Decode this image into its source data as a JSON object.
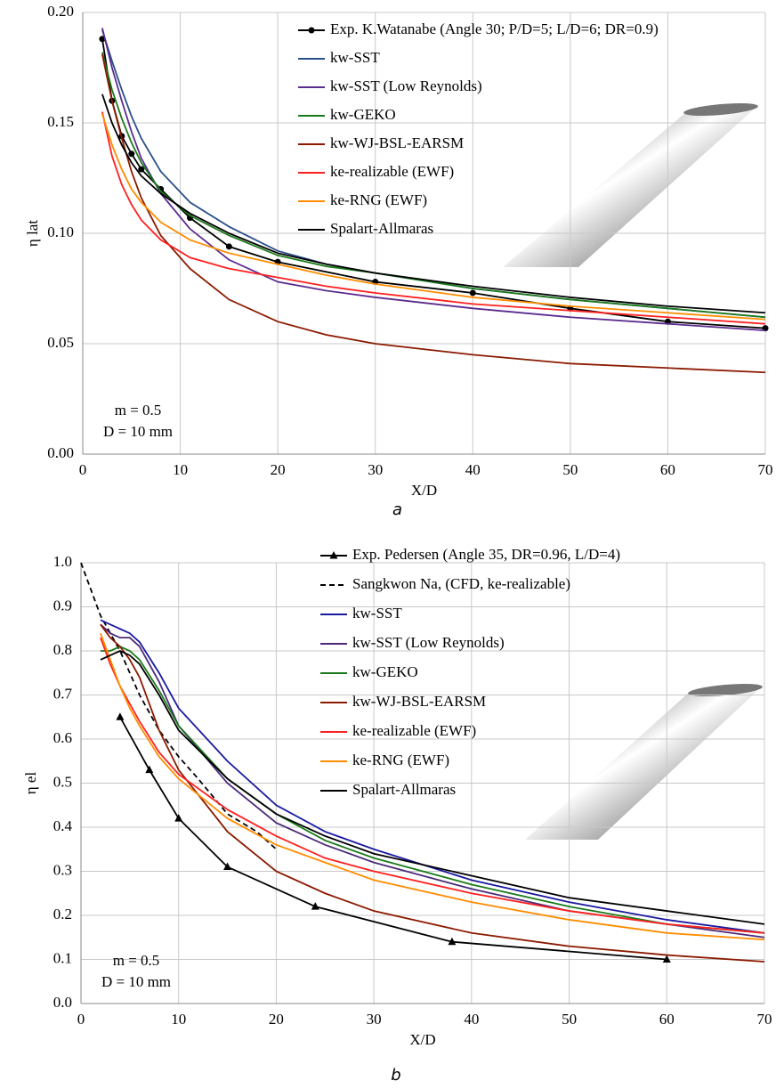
{
  "chart_data": [
    {
      "type": "line",
      "panel_label": "a",
      "xlabel": "X/D",
      "ylabel": "η lat",
      "annotations": [
        "m = 0.5",
        "D = 10 mm"
      ],
      "xlim": [
        0,
        70
      ],
      "xticks": [
        0,
        10,
        20,
        30,
        40,
        50,
        60,
        70
      ],
      "ylim": [
        0,
        0.2
      ],
      "yticks": [
        {
          "value": 0,
          "label": "0.00"
        },
        {
          "value": 0.05,
          "label": "0.05"
        },
        {
          "value": 0.1,
          "label": "0.10"
        },
        {
          "value": 0.15,
          "label": "0.15"
        },
        {
          "value": 0.2,
          "label": "0.20"
        }
      ],
      "grid": true,
      "legend": "top-right",
      "series": [
        {
          "name": "Exp. K.Watanabe (Angle 30; P/D=5; L/D=6; DR=0.9)",
          "color": "#000000",
          "marker": "circle",
          "x": [
            2,
            3,
            4,
            5,
            6,
            8,
            11,
            15,
            20,
            30,
            40,
            50,
            60,
            70
          ],
          "values": [
            0.188,
            0.16,
            0.144,
            0.136,
            0.129,
            0.12,
            0.107,
            0.094,
            0.087,
            0.078,
            0.073,
            0.066,
            0.06,
            0.057
          ]
        },
        {
          "name": "kw-SST",
          "color": "#2a4f8a",
          "x": [
            2,
            3,
            4,
            5,
            6,
            8,
            11,
            15,
            20,
            25,
            30,
            40,
            50,
            60,
            70
          ],
          "values": [
            0.192,
            0.178,
            0.165,
            0.153,
            0.143,
            0.128,
            0.114,
            0.103,
            0.092,
            0.086,
            0.082,
            0.075,
            0.07,
            0.066,
            0.062
          ]
        },
        {
          "name": "kw-SST (Low Reynolds)",
          "color": "#5b2c8f",
          "x": [
            2,
            3,
            4,
            5,
            6,
            8,
            11,
            15,
            20,
            25,
            30,
            40,
            50,
            60,
            70
          ],
          "values": [
            0.193,
            0.175,
            0.16,
            0.146,
            0.134,
            0.118,
            0.102,
            0.088,
            0.078,
            0.074,
            0.071,
            0.066,
            0.062,
            0.059,
            0.056
          ]
        },
        {
          "name": "kw-GEKO",
          "color": "#1a7a1a",
          "x": [
            2,
            3,
            4,
            5,
            6,
            8,
            11,
            15,
            20,
            25,
            30,
            40,
            50,
            60,
            70
          ],
          "values": [
            0.182,
            0.165,
            0.152,
            0.141,
            0.132,
            0.119,
            0.108,
            0.099,
            0.09,
            0.085,
            0.082,
            0.075,
            0.07,
            0.066,
            0.062
          ]
        },
        {
          "name": "kw-WJ-BSL-EARSM",
          "color": "#8b1a00",
          "x": [
            2,
            3,
            4,
            5,
            6,
            8,
            11,
            15,
            20,
            25,
            30,
            40,
            50,
            60,
            70
          ],
          "values": [
            0.181,
            0.16,
            0.143,
            0.128,
            0.116,
            0.099,
            0.084,
            0.07,
            0.06,
            0.054,
            0.05,
            0.045,
            0.041,
            0.039,
            0.037
          ]
        },
        {
          "name": "ke-realizable (EWF)",
          "color": "#ff2020",
          "x": [
            2,
            3,
            4,
            5,
            6,
            8,
            11,
            15,
            20,
            25,
            30,
            40,
            50,
            60,
            70
          ],
          "values": [
            0.155,
            0.135,
            0.122,
            0.113,
            0.106,
            0.097,
            0.089,
            0.084,
            0.08,
            0.076,
            0.073,
            0.068,
            0.065,
            0.062,
            0.059
          ]
        },
        {
          "name": "ke-RNG (EWF)",
          "color": "#ff8c00",
          "x": [
            2,
            3,
            4,
            5,
            6,
            8,
            11,
            15,
            20,
            25,
            30,
            40,
            50,
            60,
            70
          ],
          "values": [
            0.154,
            0.14,
            0.129,
            0.12,
            0.114,
            0.105,
            0.097,
            0.091,
            0.086,
            0.081,
            0.077,
            0.071,
            0.067,
            0.064,
            0.061
          ]
        },
        {
          "name": "Spalart-Allmaras",
          "color": "#000000",
          "x": [
            2,
            3,
            4,
            5,
            6,
            8,
            11,
            15,
            20,
            25,
            30,
            40,
            50,
            60,
            70
          ],
          "values": [
            0.163,
            0.15,
            0.14,
            0.132,
            0.126,
            0.118,
            0.109,
            0.1,
            0.091,
            0.086,
            0.082,
            0.076,
            0.071,
            0.067,
            0.064
          ]
        }
      ]
    },
    {
      "type": "line",
      "panel_label": "b",
      "xlabel": "X/D",
      "ylabel": "η el",
      "annotations": [
        "m = 0.5",
        "D = 10 mm"
      ],
      "xlim": [
        0,
        70
      ],
      "xticks": [
        0,
        10,
        20,
        30,
        40,
        50,
        60,
        70
      ],
      "ylim": [
        0,
        1
      ],
      "yticks": [
        {
          "value": 0,
          "label": "0.0"
        },
        0.1,
        0.2,
        0.3,
        0.4,
        0.5,
        0.6,
        0.7,
        0.8,
        0.9,
        {
          "value": 1,
          "label": "1.0"
        }
      ],
      "grid": true,
      "legend": "top-right",
      "series": [
        {
          "name": "Exp. Pedersen (Angle 35, DR=0.96, L/D=4)",
          "color": "#000000",
          "marker": "triangle",
          "x": [
            4,
            7,
            10,
            15,
            24,
            38,
            60
          ],
          "values": [
            0.65,
            0.53,
            0.42,
            0.31,
            0.22,
            0.14,
            0.1
          ]
        },
        {
          "name": "Sangkwon Na, (CFD, ke-realizable)",
          "color": "#000000",
          "dash": true,
          "x": [
            0,
            2,
            4,
            6,
            8,
            10,
            12,
            15,
            18,
            20
          ],
          "values": [
            1.0,
            0.88,
            0.8,
            0.7,
            0.62,
            0.56,
            0.51,
            0.43,
            0.39,
            0.35
          ]
        },
        {
          "name": "kw-SST",
          "color": "#1a1aa0",
          "x": [
            2,
            3,
            4,
            5,
            6,
            8,
            10,
            15,
            20,
            25,
            30,
            40,
            50,
            60,
            70
          ],
          "values": [
            0.87,
            0.86,
            0.85,
            0.84,
            0.82,
            0.75,
            0.67,
            0.55,
            0.45,
            0.39,
            0.35,
            0.28,
            0.23,
            0.19,
            0.16
          ]
        },
        {
          "name": "kw-SST (Low Reynolds)",
          "color": "#4b2a7a",
          "x": [
            2,
            3,
            4,
            5,
            6,
            8,
            10,
            15,
            20,
            25,
            30,
            40,
            50,
            60,
            70
          ],
          "values": [
            0.86,
            0.84,
            0.83,
            0.83,
            0.81,
            0.73,
            0.63,
            0.5,
            0.41,
            0.36,
            0.32,
            0.26,
            0.21,
            0.18,
            0.15
          ]
        },
        {
          "name": "kw-GEKO",
          "color": "#1a7a1a",
          "x": [
            2,
            3,
            4,
            5,
            6,
            8,
            10,
            15,
            20,
            25,
            30,
            40,
            50,
            60,
            70
          ],
          "values": [
            0.8,
            0.8,
            0.81,
            0.8,
            0.78,
            0.71,
            0.63,
            0.51,
            0.43,
            0.37,
            0.33,
            0.27,
            0.22,
            0.18,
            0.16
          ]
        },
        {
          "name": "kw-WJ-BSL-EARSM",
          "color": "#8b1a00",
          "x": [
            2,
            3,
            4,
            5,
            6,
            8,
            10,
            15,
            20,
            25,
            30,
            40,
            50,
            60,
            70
          ],
          "values": [
            0.86,
            0.83,
            0.81,
            0.78,
            0.74,
            0.62,
            0.53,
            0.39,
            0.3,
            0.25,
            0.21,
            0.16,
            0.13,
            0.11,
            0.095
          ]
        },
        {
          "name": "ke-realizable (EWF)",
          "color": "#ff2020",
          "x": [
            2,
            3,
            4,
            5,
            6,
            8,
            10,
            15,
            20,
            25,
            30,
            40,
            50,
            60,
            70
          ],
          "values": [
            0.83,
            0.77,
            0.72,
            0.68,
            0.64,
            0.57,
            0.52,
            0.44,
            0.38,
            0.33,
            0.3,
            0.25,
            0.21,
            0.18,
            0.16
          ]
        },
        {
          "name": "ke-RNG (EWF)",
          "color": "#ff8c00",
          "x": [
            2,
            3,
            4,
            5,
            6,
            8,
            10,
            15,
            20,
            25,
            30,
            40,
            50,
            60,
            70
          ],
          "values": [
            0.84,
            0.78,
            0.72,
            0.67,
            0.63,
            0.56,
            0.51,
            0.42,
            0.36,
            0.32,
            0.28,
            0.23,
            0.19,
            0.16,
            0.145
          ]
        },
        {
          "name": "Spalart-Allmaras",
          "color": "#000000",
          "x": [
            2,
            3,
            4,
            5,
            6,
            8,
            10,
            15,
            20,
            25,
            30,
            40,
            50,
            60,
            70
          ],
          "values": [
            0.78,
            0.79,
            0.8,
            0.79,
            0.77,
            0.7,
            0.62,
            0.51,
            0.43,
            0.38,
            0.34,
            0.29,
            0.24,
            0.21,
            0.18
          ]
        }
      ]
    }
  ]
}
